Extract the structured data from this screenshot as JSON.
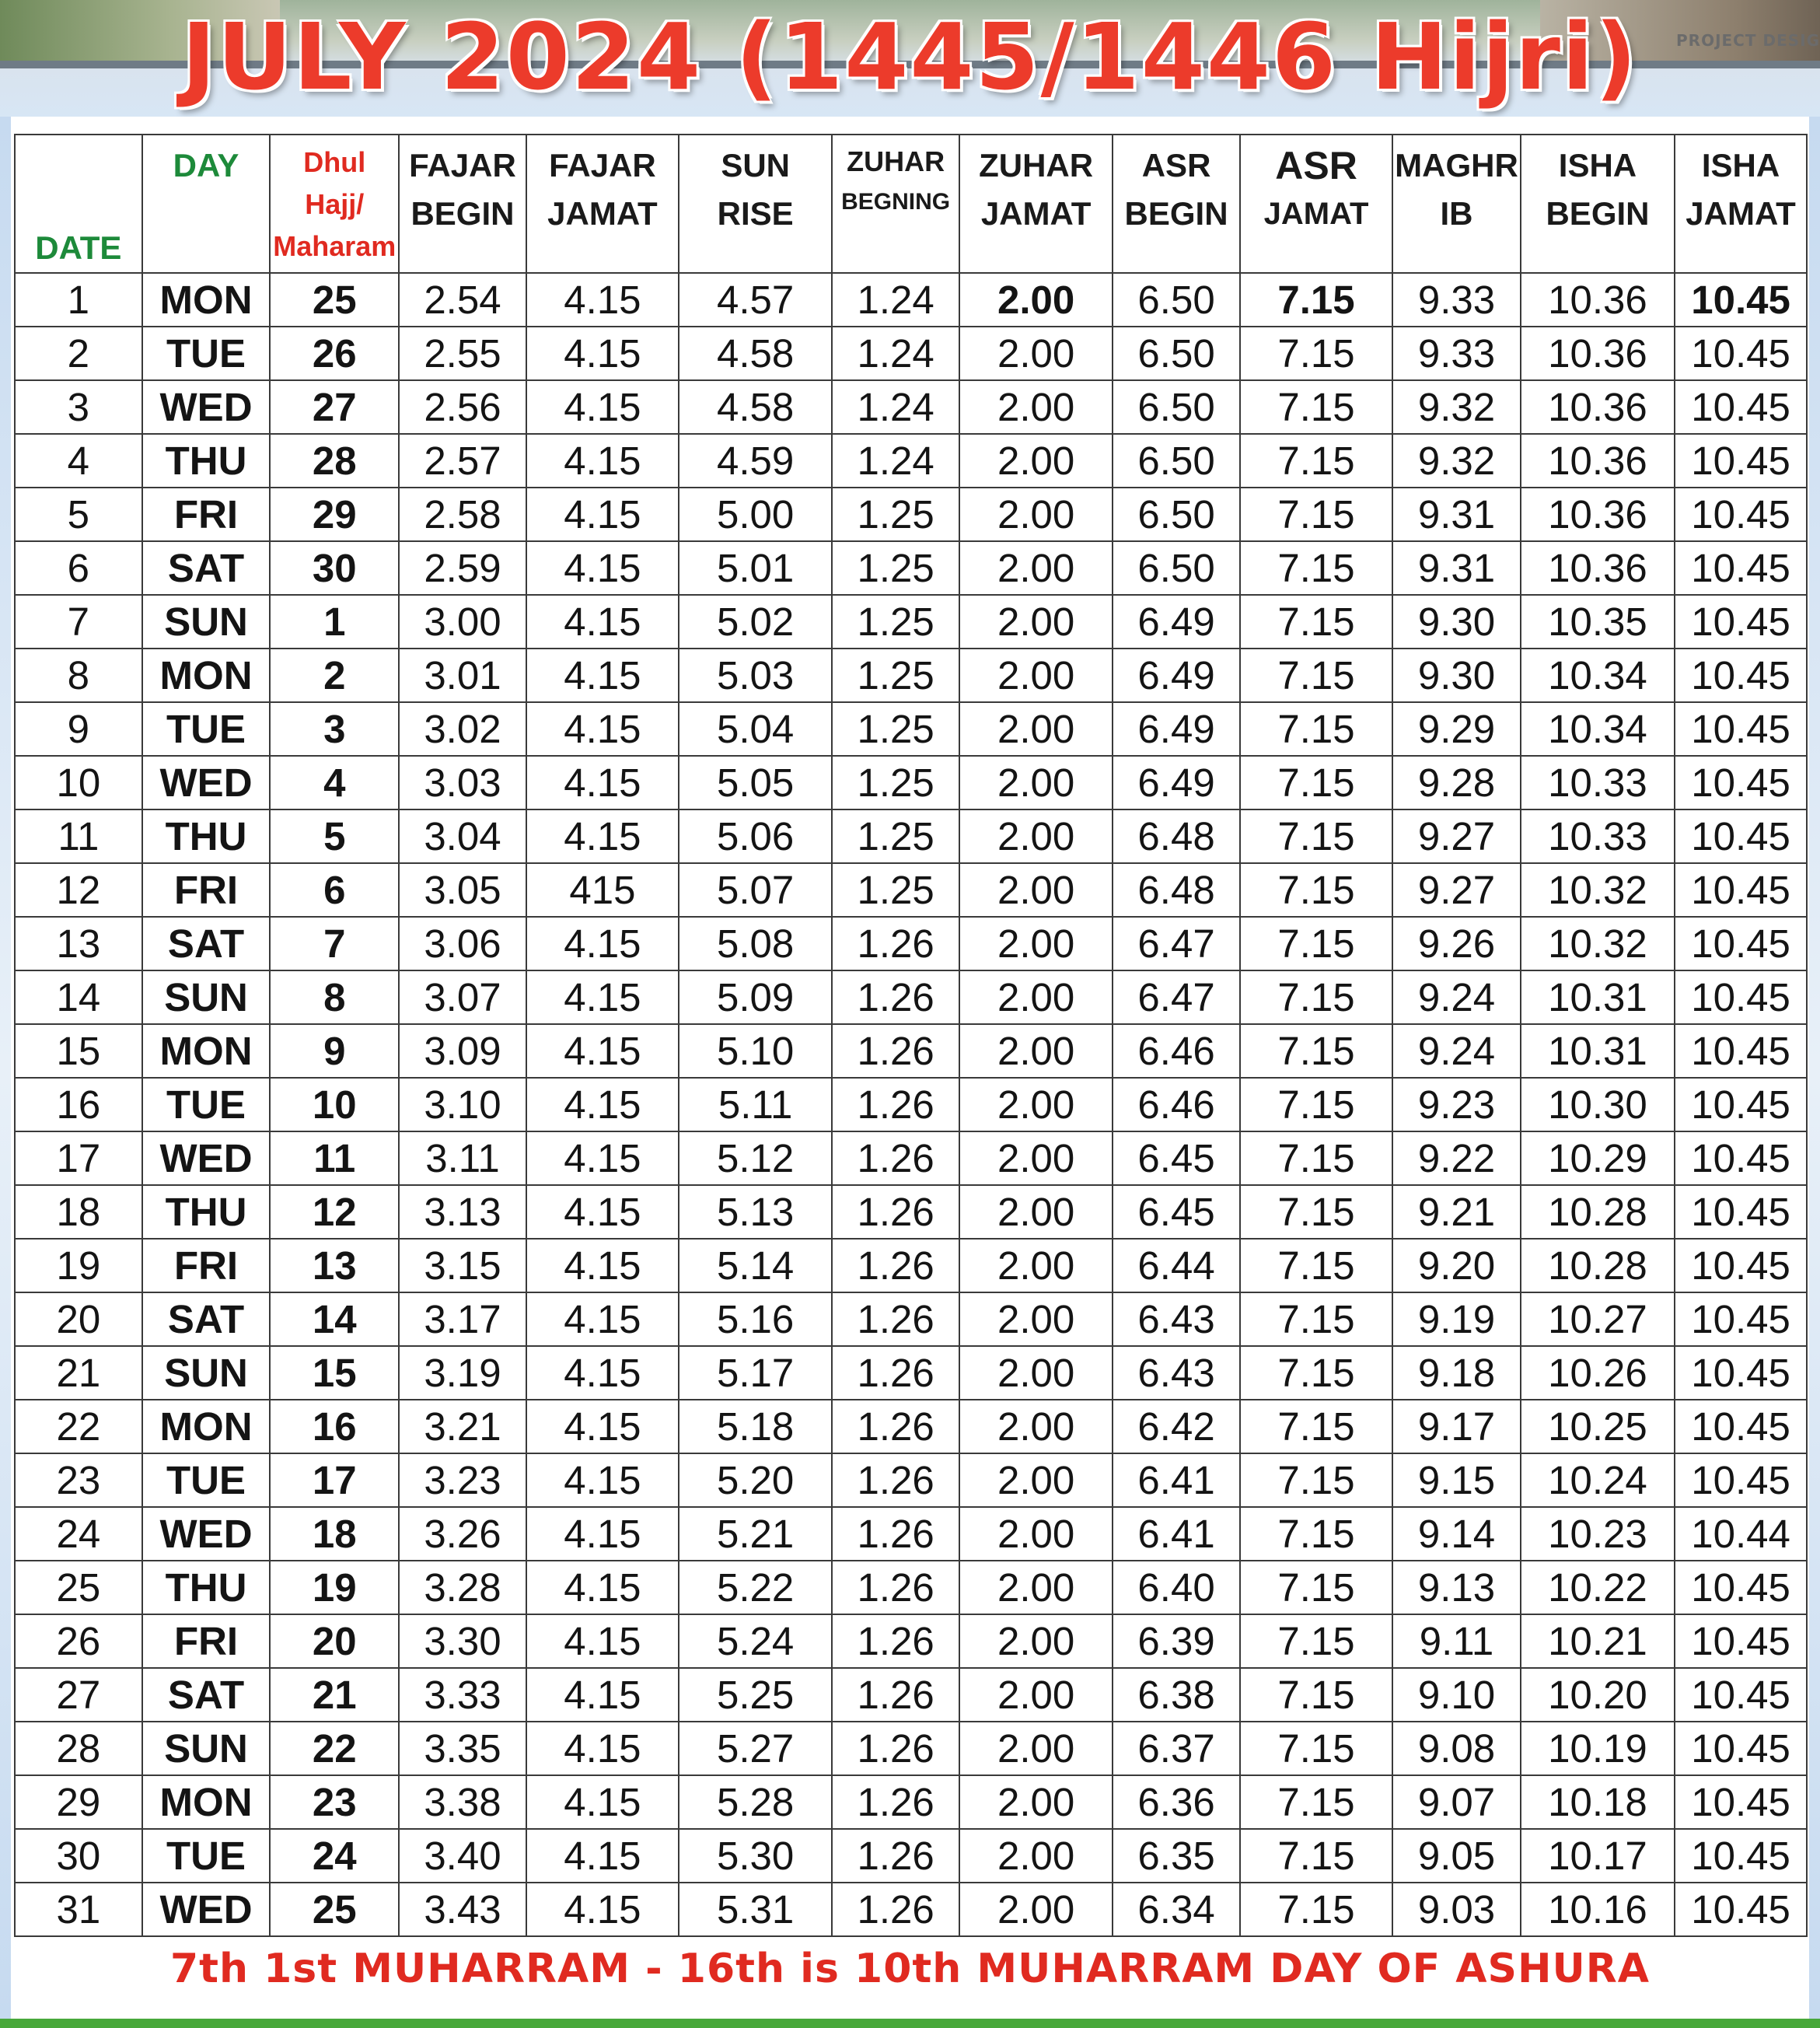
{
  "header": {
    "title": "JULY 2024  (1445/1446 Hijri)",
    "credit": "PROJECT DESIG"
  },
  "colors": {
    "title_red": "#ec3b2b",
    "day_green": "#1d8a3a",
    "hijri_red": "#e02a20",
    "footer_red": "#e02a20",
    "bottom_green": "#47a83a"
  },
  "table": {
    "columns": {
      "date": "DATE",
      "day": "DAY",
      "hijri_line1": "Dhul",
      "hijri_line2": "Hajj/",
      "hijri_line3": "Maharam",
      "fajar_begin_1": "FAJAR",
      "fajar_begin_2": "BEGIN",
      "fajar_jamat_1": "FAJAR",
      "fajar_jamat_2": "JAMAT",
      "sunrise": "SUN RISE",
      "zuhar_begin_1": "ZUHAR",
      "zuhar_begin_2": "BEGNING",
      "zuhar_jamat_1": "ZUHAR",
      "zuhar_jamat_2": "JAMAT",
      "asr_begin_1": "ASR",
      "asr_begin_2": "BEGIN",
      "asr_jamat_1": "ASR",
      "asr_jamat_2": "JAMAT",
      "maghrib_1": "MAGHR",
      "maghrib_2": "IB",
      "isha_begin_1": "ISHA",
      "isha_begin_2": "BEGIN",
      "isha_jamat_1": "ISHA",
      "isha_jamat_2": "JAMAT"
    },
    "rows": [
      [
        "1",
        "MON",
        "25",
        "2.54",
        "4.15",
        "4.57",
        "1.24",
        "2.00",
        "6.50",
        "7.15",
        "9.33",
        "10.36",
        "10.45"
      ],
      [
        "2",
        "TUE",
        "26",
        "2.55",
        "4.15",
        "4.58",
        "1.24",
        "2.00",
        "6.50",
        "7.15",
        "9.33",
        "10.36",
        "10.45"
      ],
      [
        "3",
        "WED",
        "27",
        "2.56",
        "4.15",
        "4.58",
        "1.24",
        "2.00",
        "6.50",
        "7.15",
        "9.32",
        "10.36",
        "10.45"
      ],
      [
        "4",
        "THU",
        "28",
        "2.57",
        "4.15",
        "4.59",
        "1.24",
        "2.00",
        "6.50",
        "7.15",
        "9.32",
        "10.36",
        "10.45"
      ],
      [
        "5",
        "FRI",
        "29",
        "2.58",
        "4.15",
        "5.00",
        "1.25",
        "2.00",
        "6.50",
        "7.15",
        "9.31",
        "10.36",
        "10.45"
      ],
      [
        "6",
        "SAT",
        "30",
        "2.59",
        "4.15",
        "5.01",
        "1.25",
        "2.00",
        "6.50",
        "7.15",
        "9.31",
        "10.36",
        "10.45"
      ],
      [
        "7",
        "SUN",
        "1",
        "3.00",
        "4.15",
        "5.02",
        "1.25",
        "2.00",
        "6.49",
        "7.15",
        "9.30",
        "10.35",
        "10.45"
      ],
      [
        "8",
        "MON",
        "2",
        "3.01",
        "4.15",
        "5.03",
        "1.25",
        "2.00",
        "6.49",
        "7.15",
        "9.30",
        "10.34",
        "10.45"
      ],
      [
        "9",
        "TUE",
        "3",
        "3.02",
        "4.15",
        "5.04",
        "1.25",
        "2.00",
        "6.49",
        "7.15",
        "9.29",
        "10.34",
        "10.45"
      ],
      [
        "10",
        "WED",
        "4",
        "3.03",
        "4.15",
        "5.05",
        "1.25",
        "2.00",
        "6.49",
        "7.15",
        "9.28",
        "10.33",
        "10.45"
      ],
      [
        "11",
        "THU",
        "5",
        "3.04",
        "4.15",
        "5.06",
        "1.25",
        "2.00",
        "6.48",
        "7.15",
        "9.27",
        "10.33",
        "10.45"
      ],
      [
        "12",
        "FRI",
        "6",
        "3.05",
        "415",
        "5.07",
        "1.25",
        "2.00",
        "6.48",
        "7.15",
        "9.27",
        "10.32",
        "10.45"
      ],
      [
        "13",
        "SAT",
        "7",
        "3.06",
        "4.15",
        "5.08",
        "1.26",
        "2.00",
        "6.47",
        "7.15",
        "9.26",
        "10.32",
        "10.45"
      ],
      [
        "14",
        "SUN",
        "8",
        "3.07",
        "4.15",
        "5.09",
        "1.26",
        "2.00",
        "6.47",
        "7.15",
        "9.24",
        "10.31",
        "10.45"
      ],
      [
        "15",
        "MON",
        "9",
        "3.09",
        "4.15",
        "5.10",
        "1.26",
        "2.00",
        "6.46",
        "7.15",
        "9.24",
        "10.31",
        "10.45"
      ],
      [
        "16",
        "TUE",
        "10",
        "3.10",
        "4.15",
        "5.11",
        "1.26",
        "2.00",
        "6.46",
        "7.15",
        "9.23",
        "10.30",
        "10.45"
      ],
      [
        "17",
        "WED",
        "11",
        "3.11",
        "4.15",
        "5.12",
        "1.26",
        "2.00",
        "6.45",
        "7.15",
        "9.22",
        "10.29",
        "10.45"
      ],
      [
        "18",
        "THU",
        "12",
        "3.13",
        "4.15",
        "5.13",
        "1.26",
        "2.00",
        "6.45",
        "7.15",
        "9.21",
        "10.28",
        "10.45"
      ],
      [
        "19",
        "FRI",
        "13",
        "3.15",
        "4.15",
        "5.14",
        "1.26",
        "2.00",
        "6.44",
        "7.15",
        "9.20",
        "10.28",
        "10.45"
      ],
      [
        "20",
        "SAT",
        "14",
        "3.17",
        "4.15",
        "5.16",
        "1.26",
        "2.00",
        "6.43",
        "7.15",
        "9.19",
        "10.27",
        "10.45"
      ],
      [
        "21",
        "SUN",
        "15",
        "3.19",
        "4.15",
        "5.17",
        "1.26",
        "2.00",
        "6.43",
        "7.15",
        "9.18",
        "10.26",
        "10.45"
      ],
      [
        "22",
        "MON",
        "16",
        "3.21",
        "4.15",
        "5.18",
        "1.26",
        "2.00",
        "6.42",
        "7.15",
        "9.17",
        "10.25",
        "10.45"
      ],
      [
        "23",
        "TUE",
        "17",
        "3.23",
        "4.15",
        "5.20",
        "1.26",
        "2.00",
        "6.41",
        "7.15",
        "9.15",
        "10.24",
        "10.45"
      ],
      [
        "24",
        "WED",
        "18",
        "3.26",
        "4.15",
        "5.21",
        "1.26",
        "2.00",
        "6.41",
        "7.15",
        "9.14",
        "10.23",
        "10.44"
      ],
      [
        "25",
        "THU",
        "19",
        "3.28",
        "4.15",
        "5.22",
        "1.26",
        "2.00",
        "6.40",
        "7.15",
        "9.13",
        "10.22",
        "10.45"
      ],
      [
        "26",
        "FRI",
        "20",
        "3.30",
        "4.15",
        "5.24",
        "1.26",
        "2.00",
        "6.39",
        "7.15",
        "9.11",
        "10.21",
        "10.45"
      ],
      [
        "27",
        "SAT",
        "21",
        "3.33",
        "4.15",
        "5.25",
        "1.26",
        "2.00",
        "6.38",
        "7.15",
        "9.10",
        "10.20",
        "10.45"
      ],
      [
        "28",
        "SUN",
        "22",
        "3.35",
        "4.15",
        "5.27",
        "1.26",
        "2.00",
        "6.37",
        "7.15",
        "9.08",
        "10.19",
        "10.45"
      ],
      [
        "29",
        "MON",
        "23",
        "3.38",
        "4.15",
        "5.28",
        "1.26",
        "2.00",
        "6.36",
        "7.15",
        "9.07",
        "10.18",
        "10.45"
      ],
      [
        "30",
        "TUE",
        "24",
        "3.40",
        "4.15",
        "5.30",
        "1.26",
        "2.00",
        "6.35",
        "7.15",
        "9.05",
        "10.17",
        "10.45"
      ],
      [
        "31",
        "WED",
        "25",
        "3.43",
        "4.15",
        "5.31",
        "1.26",
        "2.00",
        "6.34",
        "7.15",
        "9.03",
        "10.16",
        "10.45"
      ]
    ]
  },
  "footer": {
    "note": "7th 1st MUHARRAM - 16th is 10th MUHARRAM DAY OF ASHURA"
  }
}
